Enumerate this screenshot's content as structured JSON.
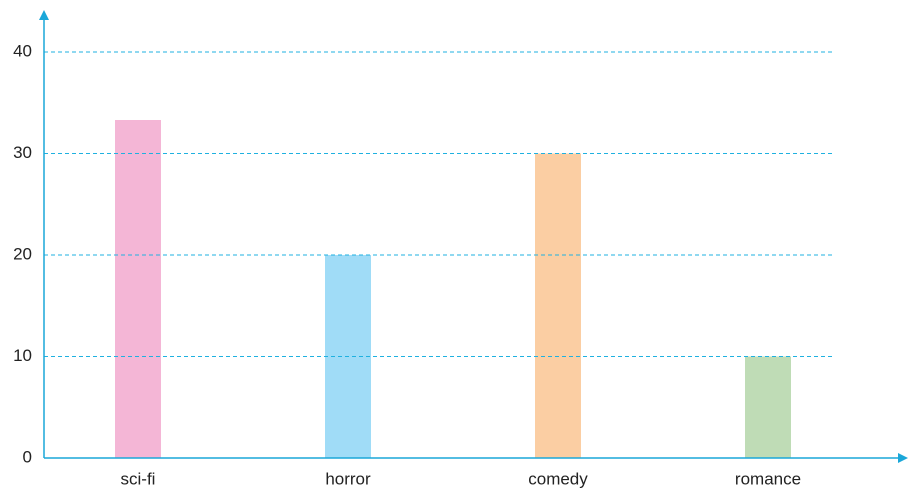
{
  "chart_data": {
    "type": "bar",
    "categories": [
      "sci-fi",
      "horror",
      "comedy",
      "romance"
    ],
    "values": [
      33.3,
      20,
      30,
      10
    ],
    "colors": [
      "#f4b6d6",
      "#a0dcf7",
      "#fbcea3",
      "#bfdcb6"
    ],
    "ylim": [
      0,
      40
    ],
    "yticks": [
      0,
      10,
      20,
      30,
      40
    ],
    "grid": true
  }
}
